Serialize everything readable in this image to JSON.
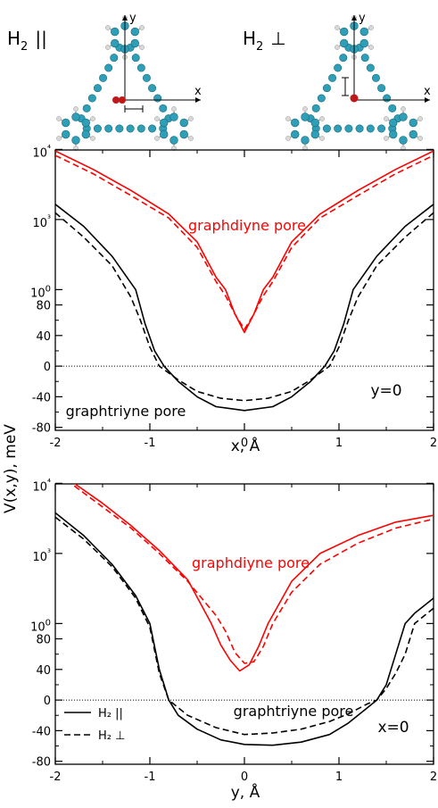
{
  "chart_data": [
    {
      "type": "line",
      "panel": "top",
      "xlabel": "x, Å",
      "xlim": [
        -2,
        2
      ],
      "xticks": [
        -2,
        -1,
        0,
        1,
        2
      ],
      "xticklabels": [
        "-2",
        "-1",
        "0",
        "1",
        "2"
      ],
      "ylabel": "V(x,y), meV",
      "y_scale": "linear below 100 meV, logarithmic above 100 meV",
      "yticklabels": [
        "-80",
        "-40",
        "0",
        "40",
        "80",
        "100",
        "10³",
        "10⁴"
      ],
      "ytickvalues": [
        -80,
        -40,
        0,
        40,
        80,
        100,
        1000,
        10000
      ],
      "zero_line": "dotted",
      "panel_label": "y=0",
      "annotations": [
        {
          "text": "graphdiyne pore",
          "color": "#ff0000"
        },
        {
          "text": "graphtriyne pore",
          "color": "#000000"
        }
      ],
      "series": [
        {
          "color": "#ff0000",
          "style": "solid",
          "points": [
            [
              -2,
              9500
            ],
            [
              -1.6,
              5200
            ],
            [
              -1.2,
              2600
            ],
            [
              -0.8,
              1200
            ],
            [
              -0.5,
              480
            ],
            [
              -0.3,
              150
            ],
            [
              -0.2,
              100
            ],
            [
              -0.1,
              68
            ],
            [
              0,
              44
            ],
            [
              0.1,
              68
            ],
            [
              0.2,
              100
            ],
            [
              0.3,
              150
            ],
            [
              0.5,
              480
            ],
            [
              0.8,
              1200
            ],
            [
              1.2,
              2600
            ],
            [
              1.6,
              5200
            ],
            [
              2,
              9500
            ]
          ]
        },
        {
          "color": "#ff0000",
          "style": "dashed",
          "points": [
            [
              -2,
              8200
            ],
            [
              -1.6,
              4500
            ],
            [
              -1.2,
              2200
            ],
            [
              -0.8,
              1050
            ],
            [
              -0.5,
              400
            ],
            [
              -0.3,
              130
            ],
            [
              -0.2,
              92
            ],
            [
              -0.1,
              68
            ],
            [
              0,
              48
            ],
            [
              0.1,
              68
            ],
            [
              0.2,
              92
            ],
            [
              0.3,
              130
            ],
            [
              0.5,
              400
            ],
            [
              0.8,
              1050
            ],
            [
              1.2,
              2200
            ],
            [
              1.6,
              4500
            ],
            [
              2,
              8200
            ]
          ]
        },
        {
          "color": "#000000",
          "style": "solid",
          "points": [
            [
              -2,
              1650
            ],
            [
              -1.7,
              800
            ],
            [
              -1.4,
              300
            ],
            [
              -1.15,
              100
            ],
            [
              -1.05,
              55
            ],
            [
              -0.95,
              20
            ],
            [
              -0.85,
              0
            ],
            [
              -0.7,
              -20
            ],
            [
              -0.5,
              -40
            ],
            [
              -0.3,
              -53
            ],
            [
              0,
              -58
            ],
            [
              0.3,
              -53
            ],
            [
              0.5,
              -40
            ],
            [
              0.7,
              -20
            ],
            [
              0.85,
              0
            ],
            [
              0.95,
              20
            ],
            [
              1.05,
              55
            ],
            [
              1.15,
              100
            ],
            [
              1.4,
              300
            ],
            [
              1.7,
              800
            ],
            [
              2,
              1650
            ]
          ]
        },
        {
          "color": "#000000",
          "style": "dashed",
          "points": [
            [
              -2,
              1250
            ],
            [
              -1.7,
              560
            ],
            [
              -1.4,
              220
            ],
            [
              -1.2,
              90
            ],
            [
              -1.1,
              60
            ],
            [
              -1,
              25
            ],
            [
              -0.9,
              0
            ],
            [
              -0.7,
              -18
            ],
            [
              -0.5,
              -33
            ],
            [
              -0.25,
              -42
            ],
            [
              0,
              -45
            ],
            [
              0.25,
              -42
            ],
            [
              0.5,
              -33
            ],
            [
              0.7,
              -18
            ],
            [
              0.9,
              0
            ],
            [
              1,
              25
            ],
            [
              1.1,
              60
            ],
            [
              1.2,
              90
            ],
            [
              1.4,
              220
            ],
            [
              1.7,
              560
            ],
            [
              2,
              1250
            ]
          ]
        }
      ]
    },
    {
      "type": "line",
      "panel": "bottom",
      "xlabel": "y,  Å",
      "xlim": [
        -2,
        2
      ],
      "xticks": [
        -2,
        -1,
        0,
        1,
        2
      ],
      "xticklabels": [
        "-2",
        "-1",
        "0",
        "1",
        "2"
      ],
      "ylabel": "V(x,y), meV",
      "y_scale": "linear below 100 meV, logarithmic above 100 meV",
      "yticklabels": [
        "-80",
        "-40",
        "0",
        "40",
        "80",
        "100",
        "10³",
        "10⁴"
      ],
      "ytickvalues": [
        -80,
        -40,
        0,
        40,
        80,
        100,
        1000,
        10000
      ],
      "zero_line": "dotted",
      "panel_label": "x=0",
      "annotations": [
        {
          "text": "graphdiyne pore",
          "color": "#ff0000"
        },
        {
          "text": "graphtriyne pore",
          "color": "#000000"
        }
      ],
      "legend": {
        "placement": "lower-left",
        "entries": [
          {
            "label": "H₂  ||",
            "style": "solid"
          },
          {
            "label": "H₂  ⊥",
            "style": "dashed"
          }
        ]
      },
      "series": [
        {
          "color": "#ff0000",
          "style": "solid",
          "points": [
            [
              -1.8,
              10000
            ],
            [
              -1.5,
              5200
            ],
            [
              -1.2,
              2500
            ],
            [
              -0.9,
              1100
            ],
            [
              -0.6,
              420
            ],
            [
              -0.35,
              100
            ],
            [
              -0.25,
              72
            ],
            [
              -0.15,
              52
            ],
            [
              -0.05,
              38
            ],
            [
              0.05,
              46
            ],
            [
              0.15,
              70
            ],
            [
              0.25,
              100
            ],
            [
              0.5,
              400
            ],
            [
              0.8,
              1000
            ],
            [
              1.2,
              1800
            ],
            [
              1.6,
              2800
            ],
            [
              2,
              3500
            ]
          ]
        },
        {
          "color": "#ff0000",
          "style": "dashed",
          "points": [
            [
              -1.8,
              9200
            ],
            [
              -1.5,
              4600
            ],
            [
              -1.2,
              2300
            ],
            [
              -0.9,
              1000
            ],
            [
              -0.6,
              400
            ],
            [
              -0.3,
              130
            ],
            [
              -0.2,
              90
            ],
            [
              -0.1,
              62
            ],
            [
              0,
              48
            ],
            [
              0.1,
              50
            ],
            [
              0.2,
              70
            ],
            [
              0.3,
              100
            ],
            [
              0.5,
              280
            ],
            [
              0.8,
              700
            ],
            [
              1.2,
              1400
            ],
            [
              1.6,
              2300
            ],
            [
              2,
              3100
            ]
          ]
        },
        {
          "color": "#000000",
          "style": "solid",
          "points": [
            [
              -2,
              3800
            ],
            [
              -1.7,
              1800
            ],
            [
              -1.4,
              700
            ],
            [
              -1.15,
              250
            ],
            [
              -1,
              100
            ],
            [
              -0.9,
              40
            ],
            [
              -0.8,
              0
            ],
            [
              -0.7,
              -20
            ],
            [
              -0.5,
              -38
            ],
            [
              -0.25,
              -52
            ],
            [
              0,
              -58
            ],
            [
              0.3,
              -59
            ],
            [
              0.6,
              -55
            ],
            [
              0.9,
              -45
            ],
            [
              1.1,
              -30
            ],
            [
              1.3,
              -10
            ],
            [
              1.4,
              0
            ],
            [
              1.5,
              20
            ],
            [
              1.6,
              60
            ],
            [
              1.7,
              100
            ],
            [
              1.8,
              140
            ],
            [
              2,
              230
            ]
          ]
        },
        {
          "color": "#000000",
          "style": "dashed",
          "points": [
            [
              -2,
              3300
            ],
            [
              -1.7,
              1600
            ],
            [
              -1.4,
              650
            ],
            [
              -1.15,
              230
            ],
            [
              -1,
              95
            ],
            [
              -0.9,
              35
            ],
            [
              -0.8,
              0
            ],
            [
              -0.6,
              -20
            ],
            [
              -0.3,
              -36
            ],
            [
              0,
              -45
            ],
            [
              0.3,
              -43
            ],
            [
              0.6,
              -38
            ],
            [
              0.9,
              -28
            ],
            [
              1.1,
              -18
            ],
            [
              1.3,
              -5
            ],
            [
              1.4,
              0
            ],
            [
              1.5,
              15
            ],
            [
              1.6,
              35
            ],
            [
              1.7,
              60
            ],
            [
              1.8,
              100
            ],
            [
              2,
              165
            ]
          ]
        }
      ]
    }
  ],
  "insets": {
    "left_label_prefix": "H",
    "left_label_sub": "2",
    "left_label_symbol": "||",
    "right_label_prefix": "H",
    "right_label_sub": "2",
    "right_label_symbol": "⊥",
    "axis_x": "x",
    "axis_y": "y"
  },
  "colors": {
    "carbon": "#2f9fb8",
    "hydrogen": "#d9d9d9",
    "h2_molecule": "#c01818",
    "red_curves": "#ff0000",
    "black_curves": "#000000"
  }
}
